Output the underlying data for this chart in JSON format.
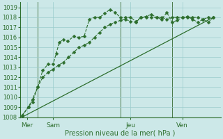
{
  "xlabel": "Pression niveau de la mer( hPa )",
  "ylim": [
    1008,
    1019.5
  ],
  "yticks": [
    1008,
    1009,
    1010,
    1011,
    1012,
    1013,
    1014,
    1015,
    1016,
    1017,
    1018,
    1019
  ],
  "background_color": "#cce8e8",
  "grid_color": "#99cccc",
  "line_color": "#2d6e2d",
  "xlim": [
    -0.2,
    19.2
  ],
  "xtick_positions": [
    0.5,
    3.0,
    10.5,
    15.5
  ],
  "xtick_labels": [
    "Mer",
    "Sam",
    "Jeu",
    "Ven"
  ],
  "vline_positions": [
    1.5,
    9.5,
    14.5
  ],
  "line1_x": [
    0,
    0.6,
    1.0,
    1.5,
    2.0,
    2.5,
    3.0,
    3.3,
    3.6,
    4.0,
    4.4,
    5.0,
    5.5,
    6.0,
    6.5,
    7.0,
    7.5,
    8.0,
    8.5,
    9.0,
    9.5,
    10.0,
    10.5,
    11.0,
    11.5,
    12.0,
    12.5,
    13.0,
    13.5,
    14.0,
    14.5,
    15.0,
    15.5,
    16.0,
    16.5,
    17.0,
    17.5,
    18.0,
    18.5
  ],
  "line1_y": [
    1008.2,
    1009.0,
    1009.8,
    1011.0,
    1012.7,
    1013.3,
    1013.3,
    1014.4,
    1015.5,
    1015.8,
    1015.6,
    1016.1,
    1016.0,
    1016.1,
    1017.8,
    1018.0,
    1018.0,
    1018.4,
    1018.8,
    1018.5,
    1018.0,
    1018.0,
    1018.0,
    1017.6,
    1018.0,
    1018.0,
    1018.0,
    1018.0,
    1018.0,
    1017.8,
    1018.0,
    1018.0,
    1018.0,
    1018.1,
    1017.8,
    1017.5,
    1017.8,
    1018.0,
    1018.0
  ],
  "line2_x": [
    0,
    0.6,
    1.0,
    1.5,
    2.0,
    2.5,
    3.0,
    3.5,
    4.0,
    4.5,
    5.0,
    5.5,
    6.0,
    6.5,
    7.0,
    7.5,
    8.0,
    8.5,
    9.0,
    9.5,
    10.0,
    10.5,
    11.0,
    11.5,
    12.0,
    12.5,
    13.0,
    13.5,
    14.0,
    14.5,
    15.0,
    15.5,
    16.0,
    16.5,
    17.0,
    17.5,
    18.0,
    18.5
  ],
  "line2_y": [
    1008.1,
    1009.0,
    1009.5,
    1011.0,
    1012.0,
    1012.5,
    1012.8,
    1013.2,
    1013.5,
    1014.0,
    1014.5,
    1015.0,
    1015.2,
    1015.5,
    1016.0,
    1016.5,
    1017.0,
    1017.3,
    1017.5,
    1017.7,
    1017.8,
    1017.6,
    1017.5,
    1018.0,
    1018.1,
    1018.3,
    1018.0,
    1017.8,
    1018.5,
    1017.5,
    1017.7,
    1018.0,
    1018.0,
    1018.0,
    1018.0,
    1017.8,
    1017.5,
    1018.0
  ],
  "line3_x": [
    0,
    18.5
  ],
  "line3_y": [
    1008.0,
    1018.0
  ]
}
